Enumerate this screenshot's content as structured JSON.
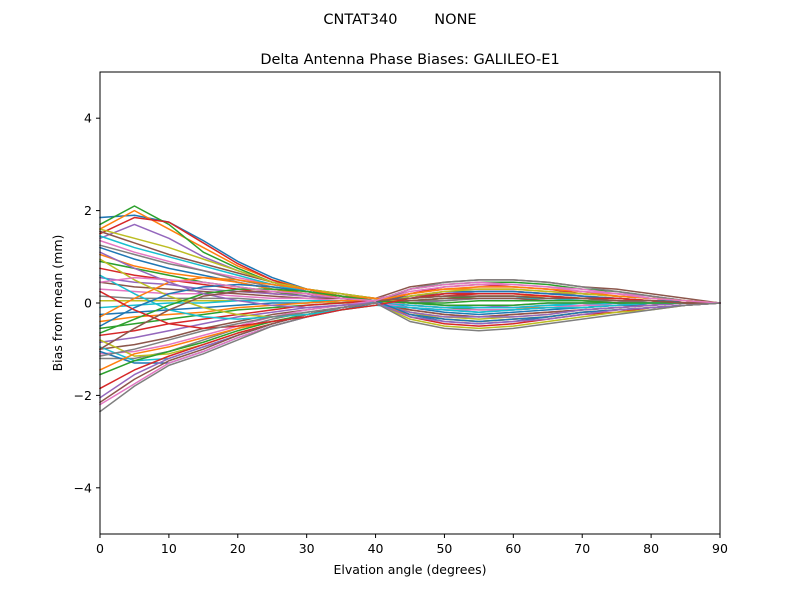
{
  "suptitle": "CNTAT340        NONE",
  "chart_data": {
    "type": "line",
    "title": "Delta Antenna Phase Biases: GALILEO-E1",
    "xlabel": "Elvation angle (degrees)",
    "ylabel": "Bias from mean (mm)",
    "xlim": [
      0,
      90
    ],
    "ylim": [
      -5,
      5
    ],
    "xticks": [
      "0",
      "10",
      "20",
      "30",
      "40",
      "50",
      "60",
      "70",
      "80",
      "90"
    ],
    "yticks": [
      "−4",
      "−2",
      "0",
      "2",
      "4"
    ],
    "grid": false,
    "legend": "none",
    "x": [
      0,
      5,
      10,
      15,
      20,
      25,
      30,
      35,
      40,
      45,
      50,
      55,
      60,
      65,
      70,
      75,
      80,
      85,
      90
    ],
    "colors": [
      "#1f77b4",
      "#ff7f0e",
      "#2ca02c",
      "#d62728",
      "#9467bd",
      "#8c564b",
      "#e377c2",
      "#7f7f7f",
      "#bcbd22",
      "#17becf"
    ],
    "series": [
      {
        "values": [
          1.85,
          1.9,
          1.75,
          1.35,
          0.9,
          0.55,
          0.3,
          0.15,
          0.0,
          -0.1,
          -0.2,
          -0.25,
          -0.2,
          -0.15,
          -0.1,
          -0.05,
          -0.05,
          0.0,
          0.0
        ]
      },
      {
        "values": [
          1.6,
          2.0,
          1.6,
          1.2,
          0.8,
          0.5,
          0.3,
          0.2,
          0.1,
          0.0,
          -0.05,
          -0.1,
          -0.1,
          -0.1,
          -0.05,
          0.0,
          0.0,
          0.0,
          0.0
        ]
      },
      {
        "values": [
          1.7,
          2.1,
          1.7,
          1.1,
          0.75,
          0.45,
          0.3,
          0.15,
          0.05,
          -0.05,
          -0.1,
          -0.15,
          -0.15,
          -0.1,
          -0.1,
          -0.05,
          0.0,
          0.0,
          0.0
        ]
      },
      {
        "values": [
          1.5,
          1.85,
          1.75,
          1.3,
          0.85,
          0.5,
          0.25,
          0.1,
          0.0,
          0.2,
          0.35,
          0.4,
          0.35,
          0.3,
          0.2,
          0.15,
          0.1,
          0.05,
          0.0
        ]
      },
      {
        "values": [
          1.4,
          1.7,
          1.4,
          1.0,
          0.7,
          0.45,
          0.25,
          0.15,
          0.05,
          -0.05,
          -0.1,
          -0.1,
          -0.05,
          0.0,
          0.0,
          0.0,
          0.0,
          0.0,
          0.0
        ]
      },
      {
        "values": [
          1.55,
          1.3,
          1.05,
          0.85,
          0.65,
          0.45,
          0.3,
          0.2,
          0.1,
          0.35,
          0.45,
          0.5,
          0.5,
          0.45,
          0.35,
          0.3,
          0.2,
          0.1,
          0.0
        ]
      },
      {
        "values": [
          1.35,
          1.1,
          0.9,
          0.7,
          0.55,
          0.4,
          0.25,
          0.15,
          0.1,
          0.2,
          0.3,
          0.35,
          0.35,
          0.3,
          0.25,
          0.2,
          0.15,
          0.05,
          0.0
        ]
      },
      {
        "values": [
          1.25,
          1.05,
          0.85,
          0.7,
          0.5,
          0.35,
          0.25,
          0.15,
          0.1,
          0.1,
          0.2,
          0.25,
          0.25,
          0.2,
          0.2,
          0.15,
          0.1,
          0.05,
          0.0
        ]
      },
      {
        "values": [
          1.6,
          1.4,
          1.2,
          0.95,
          0.7,
          0.45,
          0.3,
          0.2,
          0.1,
          -0.2,
          -0.35,
          -0.4,
          -0.35,
          -0.3,
          -0.2,
          -0.15,
          -0.1,
          -0.05,
          0.0
        ]
      },
      {
        "values": [
          1.45,
          1.2,
          1.0,
          0.8,
          0.6,
          0.4,
          0.25,
          0.15,
          0.05,
          0.0,
          -0.05,
          -0.1,
          -0.1,
          -0.05,
          0.0,
          0.0,
          0.0,
          0.0,
          0.0
        ]
      },
      {
        "values": [
          1.2,
          0.95,
          0.75,
          0.6,
          0.45,
          0.3,
          0.2,
          0.1,
          0.05,
          -0.25,
          -0.4,
          -0.45,
          -0.4,
          -0.3,
          -0.2,
          -0.15,
          -0.1,
          -0.05,
          0.0
        ]
      },
      {
        "values": [
          1.05,
          0.8,
          0.65,
          0.55,
          0.45,
          0.3,
          0.2,
          0.15,
          0.1,
          0.05,
          0.1,
          0.15,
          0.15,
          0.15,
          0.1,
          0.05,
          0.05,
          0.0,
          0.0
        ]
      },
      {
        "values": [
          0.9,
          0.75,
          0.6,
          0.45,
          0.35,
          0.25,
          0.15,
          0.1,
          0.05,
          0.3,
          0.4,
          0.45,
          0.45,
          0.4,
          0.3,
          0.25,
          0.15,
          0.05,
          0.0
        ]
      },
      {
        "values": [
          0.75,
          0.6,
          0.5,
          0.4,
          0.3,
          0.2,
          0.15,
          0.1,
          0.05,
          -0.15,
          -0.25,
          -0.3,
          -0.25,
          -0.2,
          -0.15,
          -0.1,
          -0.05,
          0.0,
          0.0
        ]
      },
      {
        "values": [
          0.55,
          0.45,
          0.4,
          0.3,
          0.25,
          0.2,
          0.15,
          0.1,
          0.05,
          0.0,
          0.05,
          0.1,
          0.1,
          0.1,
          0.05,
          0.05,
          0.0,
          0.0,
          0.0
        ]
      },
      {
        "values": [
          0.45,
          0.35,
          0.3,
          0.25,
          0.2,
          0.15,
          0.1,
          0.1,
          0.05,
          0.15,
          0.2,
          0.25,
          0.25,
          0.2,
          0.15,
          0.1,
          0.05,
          0.0,
          0.0
        ]
      },
      {
        "values": [
          0.3,
          0.25,
          0.2,
          0.2,
          0.15,
          0.1,
          0.1,
          0.05,
          0.05,
          -0.05,
          -0.1,
          -0.1,
          -0.1,
          -0.05,
          -0.05,
          0.0,
          0.0,
          0.0,
          0.0
        ]
      },
      {
        "values": [
          0.15,
          0.1,
          0.1,
          0.1,
          0.1,
          0.05,
          0.05,
          0.05,
          0.0,
          0.1,
          0.15,
          0.15,
          0.15,
          0.1,
          0.1,
          0.05,
          0.05,
          0.0,
          0.0
        ]
      },
      {
        "values": [
          0.05,
          0.05,
          0.05,
          0.05,
          0.05,
          0.05,
          0.05,
          0.0,
          0.0,
          -0.2,
          -0.3,
          -0.35,
          -0.3,
          -0.25,
          -0.15,
          -0.1,
          -0.05,
          0.0,
          0.0
        ]
      },
      {
        "values": [
          -0.1,
          -0.05,
          0.0,
          0.0,
          0.05,
          0.05,
          0.05,
          0.05,
          0.0,
          0.05,
          0.1,
          0.1,
          0.1,
          0.1,
          0.05,
          0.05,
          0.0,
          0.0,
          0.0
        ]
      },
      {
        "values": [
          -0.25,
          -0.2,
          -0.15,
          -0.1,
          -0.05,
          0.0,
          0.0,
          0.05,
          0.05,
          -0.1,
          -0.15,
          -0.2,
          -0.15,
          -0.1,
          -0.1,
          -0.05,
          0.0,
          0.0,
          0.0
        ]
      },
      {
        "values": [
          -0.4,
          -0.3,
          -0.25,
          -0.2,
          -0.1,
          -0.05,
          0.0,
          0.05,
          0.05,
          0.2,
          0.3,
          0.3,
          0.3,
          0.25,
          0.2,
          0.15,
          0.1,
          0.05,
          0.0
        ]
      },
      {
        "values": [
          -0.55,
          -0.45,
          -0.35,
          -0.25,
          -0.15,
          -0.1,
          -0.05,
          0.0,
          0.05,
          0.0,
          -0.05,
          -0.05,
          -0.05,
          0.0,
          0.0,
          0.0,
          0.0,
          0.0,
          0.0
        ]
      },
      {
        "values": [
          -0.7,
          -0.6,
          -0.45,
          -0.35,
          -0.25,
          -0.15,
          -0.05,
          0.0,
          0.05,
          -0.3,
          -0.45,
          -0.5,
          -0.45,
          -0.35,
          -0.25,
          -0.2,
          -0.1,
          -0.05,
          0.0
        ]
      },
      {
        "values": [
          -0.85,
          -0.75,
          -0.6,
          -0.45,
          -0.3,
          -0.2,
          -0.1,
          -0.05,
          0.05,
          0.1,
          0.2,
          0.25,
          0.25,
          0.2,
          0.15,
          0.1,
          0.05,
          0.05,
          0.0
        ]
      },
      {
        "values": [
          -1.0,
          -0.9,
          -0.75,
          -0.55,
          -0.4,
          -0.25,
          -0.15,
          -0.05,
          0.0,
          -0.15,
          -0.25,
          -0.3,
          -0.25,
          -0.2,
          -0.15,
          -0.1,
          -0.05,
          0.0,
          0.0
        ]
      },
      {
        "values": [
          -1.1,
          -1.05,
          -0.9,
          -0.7,
          -0.5,
          -0.3,
          -0.15,
          -0.05,
          0.05,
          0.25,
          0.35,
          0.4,
          0.4,
          0.35,
          0.3,
          0.2,
          0.15,
          0.05,
          0.0
        ]
      },
      {
        "values": [
          -1.2,
          -1.2,
          -1.05,
          -0.8,
          -0.55,
          -0.35,
          -0.2,
          -0.1,
          0.0,
          0.05,
          0.05,
          0.1,
          0.1,
          0.05,
          0.05,
          0.05,
          0.0,
          0.0,
          0.0
        ]
      },
      {
        "values": [
          -0.8,
          -1.15,
          -1.1,
          -0.9,
          -0.65,
          -0.45,
          -0.25,
          -0.1,
          0.0,
          -0.35,
          -0.5,
          -0.55,
          -0.5,
          -0.4,
          -0.3,
          -0.2,
          -0.15,
          -0.05,
          0.0
        ]
      },
      {
        "values": [
          -0.95,
          -1.25,
          -1.2,
          -0.95,
          -0.7,
          -0.45,
          -0.25,
          -0.1,
          0.0,
          -0.05,
          -0.1,
          -0.1,
          -0.1,
          -0.05,
          -0.05,
          0.0,
          0.0,
          0.0,
          0.0
        ]
      },
      {
        "values": [
          -1.05,
          -1.3,
          -1.3,
          -1.05,
          -0.75,
          -0.5,
          -0.3,
          -0.15,
          0.0,
          0.15,
          0.25,
          0.25,
          0.25,
          0.2,
          0.15,
          0.1,
          0.05,
          0.05,
          0.0
        ]
      },
      {
        "values": [
          -1.45,
          -1.1,
          -0.95,
          -0.75,
          -0.55,
          -0.4,
          -0.25,
          -0.1,
          0.0,
          -0.25,
          -0.35,
          -0.4,
          -0.35,
          -0.3,
          -0.2,
          -0.15,
          -0.1,
          -0.05,
          0.0
        ]
      },
      {
        "values": [
          -1.55,
          -1.25,
          -1.05,
          -0.85,
          -0.6,
          -0.4,
          -0.25,
          -0.1,
          0.0,
          0.05,
          0.1,
          0.15,
          0.15,
          0.1,
          0.1,
          0.05,
          0.05,
          0.0,
          0.0
        ]
      },
      {
        "values": [
          -1.85,
          -1.45,
          -1.15,
          -0.9,
          -0.65,
          -0.45,
          -0.25,
          -0.1,
          0.0,
          0.1,
          0.2,
          0.2,
          0.2,
          0.15,
          0.1,
          0.1,
          0.05,
          0.0,
          0.0
        ]
      },
      {
        "values": [
          -2.05,
          -1.55,
          -1.2,
          -0.95,
          -0.7,
          -0.45,
          -0.25,
          -0.1,
          0.0,
          -0.2,
          -0.3,
          -0.3,
          -0.3,
          -0.25,
          -0.15,
          -0.1,
          -0.05,
          0.0,
          0.0
        ]
      },
      {
        "values": [
          -2.15,
          -1.65,
          -1.25,
          -1.0,
          -0.7,
          -0.45,
          -0.25,
          -0.1,
          0.0,
          0.05,
          0.1,
          0.1,
          0.1,
          0.05,
          0.05,
          0.0,
          0.0,
          0.0,
          0.0
        ]
      },
      {
        "values": [
          -2.2,
          -1.75,
          -1.3,
          -1.05,
          -0.75,
          -0.5,
          -0.3,
          -0.1,
          0.0,
          -0.1,
          -0.15,
          -0.15,
          -0.15,
          -0.1,
          -0.05,
          -0.05,
          0.0,
          0.0,
          0.0
        ]
      },
      {
        "values": [
          -2.35,
          -1.8,
          -1.35,
          -1.1,
          -0.8,
          -0.5,
          -0.3,
          -0.1,
          0.0,
          0.3,
          0.45,
          0.5,
          0.5,
          0.45,
          0.35,
          0.25,
          0.15,
          0.05,
          0.0
        ]
      },
      {
        "values": [
          0.95,
          0.5,
          0.15,
          -0.1,
          -0.25,
          -0.3,
          -0.25,
          -0.15,
          -0.05,
          0.15,
          0.25,
          0.3,
          0.3,
          0.25,
          0.2,
          0.15,
          0.1,
          0.05,
          0.0
        ]
      },
      {
        "values": [
          0.6,
          0.2,
          -0.15,
          -0.3,
          -0.35,
          -0.3,
          -0.25,
          -0.15,
          -0.05,
          -0.1,
          -0.15,
          -0.2,
          -0.15,
          -0.1,
          -0.1,
          -0.05,
          0.0,
          0.0,
          0.0
        ]
      },
      {
        "values": [
          -0.5,
          -0.1,
          0.2,
          0.35,
          0.4,
          0.35,
          0.25,
          0.15,
          0.05,
          -0.25,
          -0.35,
          -0.4,
          -0.35,
          -0.3,
          -0.2,
          -0.15,
          -0.1,
          -0.05,
          0.0
        ]
      },
      {
        "values": [
          -0.3,
          0.1,
          0.45,
          0.55,
          0.5,
          0.4,
          0.3,
          0.15,
          0.05,
          0.2,
          0.3,
          0.35,
          0.35,
          0.3,
          0.25,
          0.15,
          0.1,
          0.05,
          0.0
        ]
      },
      {
        "values": [
          -0.65,
          -0.35,
          -0.05,
          0.2,
          0.3,
          0.3,
          0.25,
          0.15,
          0.05,
          0.0,
          0.0,
          0.05,
          0.05,
          0.05,
          0.05,
          0.0,
          0.0,
          0.0,
          0.0
        ]
      },
      {
        "values": [
          0.25,
          -0.15,
          -0.45,
          -0.55,
          -0.5,
          -0.4,
          -0.3,
          -0.15,
          -0.05,
          0.1,
          0.15,
          0.2,
          0.2,
          0.15,
          0.1,
          0.1,
          0.05,
          0.0,
          0.0
        ]
      },
      {
        "values": [
          1.1,
          0.75,
          0.45,
          0.2,
          0.05,
          -0.05,
          -0.1,
          -0.05,
          0.0,
          -0.3,
          -0.4,
          -0.45,
          -0.4,
          -0.35,
          -0.25,
          -0.15,
          -0.1,
          -0.05,
          0.0
        ]
      },
      {
        "values": [
          -1.0,
          -0.55,
          -0.15,
          0.15,
          0.25,
          0.25,
          0.2,
          0.1,
          0.05,
          0.1,
          0.15,
          0.15,
          0.15,
          0.1,
          0.1,
          0.05,
          0.05,
          0.0,
          0.0
        ]
      },
      {
        "values": [
          0.45,
          0.55,
          0.5,
          0.45,
          0.35,
          0.25,
          0.2,
          0.1,
          0.05,
          0.3,
          0.4,
          0.45,
          0.4,
          0.35,
          0.25,
          0.2,
          0.1,
          0.05,
          0.0
        ]
      },
      {
        "values": [
          -1.15,
          -1.0,
          -0.8,
          -0.6,
          -0.45,
          -0.3,
          -0.2,
          -0.1,
          0.0,
          -0.4,
          -0.55,
          -0.6,
          -0.55,
          -0.45,
          -0.35,
          -0.25,
          -0.15,
          -0.05,
          0.0
        ]
      }
    ]
  }
}
